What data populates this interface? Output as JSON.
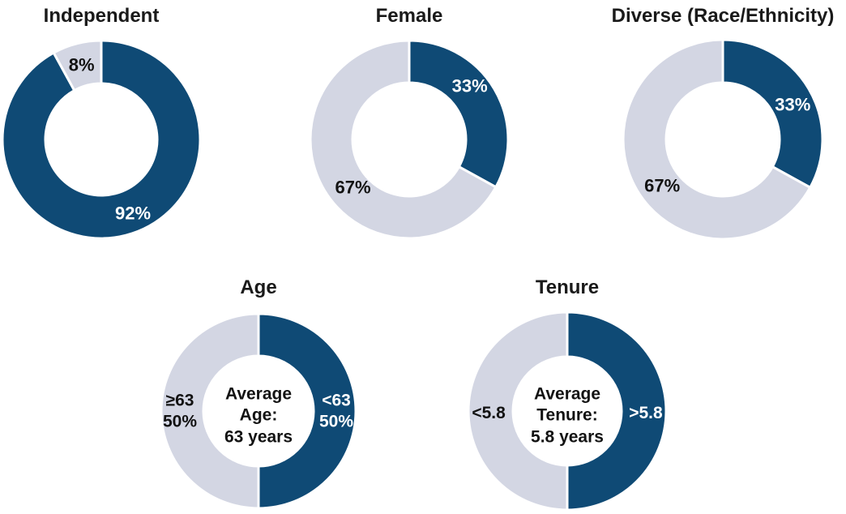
{
  "colors": {
    "primary": "#0F4A75",
    "secondary": "#D3D6E3",
    "label_dark": "#121212",
    "label_light": "#FFFFFF",
    "background": "#FFFFFF"
  },
  "chart_data": [
    {
      "type": "pie",
      "donut": true,
      "title": "Independent",
      "start_angle_deg": 0,
      "clockwise": true,
      "slices": [
        {
          "label": "92%",
          "value": 92,
          "color": "#0F4A75",
          "label_color": "#FFFFFF"
        },
        {
          "label": "8%",
          "value": 8,
          "color": "#D3D6E3",
          "label_color": "#121212"
        }
      ],
      "center_text": ""
    },
    {
      "type": "pie",
      "donut": true,
      "title": "Female",
      "start_angle_deg": 0,
      "clockwise": true,
      "slices": [
        {
          "label": "33%",
          "value": 33,
          "color": "#0F4A75",
          "label_color": "#FFFFFF"
        },
        {
          "label": "67%",
          "value": 67,
          "color": "#D3D6E3",
          "label_color": "#121212"
        }
      ],
      "center_text": ""
    },
    {
      "type": "pie",
      "donut": true,
      "title": "Diverse (Race/Ethnicity)",
      "start_angle_deg": 0,
      "clockwise": true,
      "slices": [
        {
          "label": "33%",
          "value": 33,
          "color": "#0F4A75",
          "label_color": "#FFFFFF"
        },
        {
          "label": "67%",
          "value": 67,
          "color": "#D3D6E3",
          "label_color": "#121212"
        }
      ],
      "center_text": ""
    },
    {
      "type": "pie",
      "donut": true,
      "title": "Age",
      "start_angle_deg": 0,
      "clockwise": true,
      "slices": [
        {
          "label": "<63\n50%",
          "value": 50,
          "color": "#0F4A75",
          "label_color": "#FFFFFF"
        },
        {
          "label": "≥63\n50%",
          "value": 50,
          "color": "#D3D6E3",
          "label_color": "#121212"
        }
      ],
      "center_text": "Average\nAge:\n63 years"
    },
    {
      "type": "pie",
      "donut": true,
      "title": "Tenure",
      "start_angle_deg": 0,
      "clockwise": true,
      "slices": [
        {
          "label": ">5.8",
          "value": 50,
          "color": "#0F4A75",
          "label_color": "#FFFFFF"
        },
        {
          "label": "<5.8",
          "value": 50,
          "color": "#D3D6E3",
          "label_color": "#121212"
        }
      ],
      "center_text": "Average\nTenure:\n5.8 years"
    }
  ]
}
